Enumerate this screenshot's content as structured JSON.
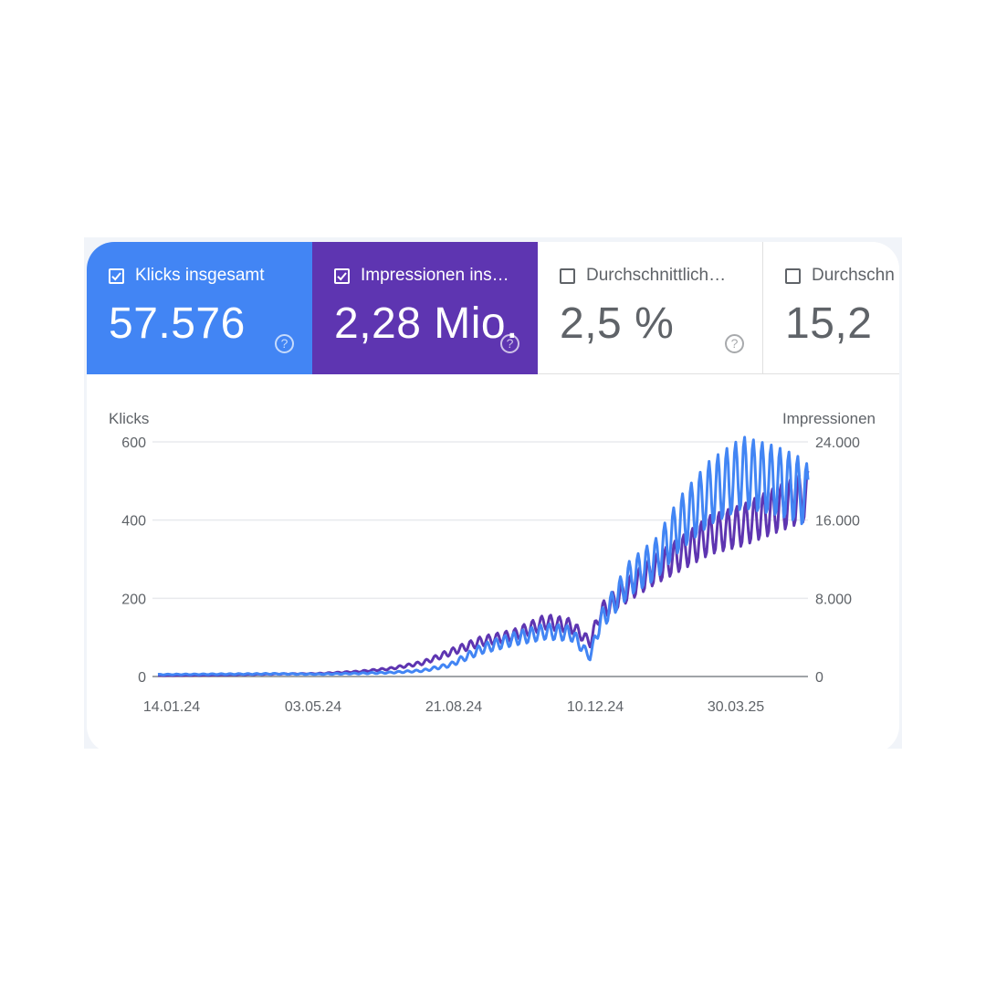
{
  "tiles": [
    {
      "label": "Klicks insgesamt",
      "value": "57.576",
      "checked": true,
      "color": "#4285f4"
    },
    {
      "label": "Impressionen ins…",
      "value": "2,28 Mio.",
      "checked": true,
      "color": "#5e35b1"
    },
    {
      "label": "Durchschnittlich…",
      "value": "2,5 %",
      "checked": false
    },
    {
      "label": "Durchschn",
      "value": "15,2",
      "checked": false
    }
  ],
  "icons": {
    "checkbox": "checkbox-icon",
    "help": "help-icon"
  },
  "help_glyph": "?",
  "chart_data": {
    "type": "line",
    "left_axis_title": "Klicks",
    "right_axis_title": "Impressionen",
    "left_ticks": [
      "0",
      "200",
      "400",
      "600"
    ],
    "right_ticks": [
      "0",
      "8.000",
      "16.000",
      "24.000"
    ],
    "x_ticks": [
      "14.01.24",
      "03.05.24",
      "21.08.24",
      "10.12.24",
      "30.03.25"
    ],
    "x_range": [
      "2024-01-14",
      "2025-06-10"
    ],
    "left_range": [
      0,
      600
    ],
    "right_range": [
      0,
      24000
    ],
    "grid": true,
    "series": [
      {
        "name": "Impressionen",
        "axis": "right",
        "color": "#5e35b1",
        "points": [
          [
            "2024-01-14",
            100
          ],
          [
            "2024-03-01",
            150
          ],
          [
            "2024-04-15",
            250
          ],
          [
            "2024-05-20",
            300
          ],
          [
            "2024-06-20",
            500
          ],
          [
            "2024-07-15",
            800
          ],
          [
            "2024-08-10",
            1400
          ],
          [
            "2024-09-01",
            2500
          ],
          [
            "2024-09-25",
            3600
          ],
          [
            "2024-10-20",
            4200
          ],
          [
            "2024-11-15",
            5600
          ],
          [
            "2024-12-05",
            5200
          ],
          [
            "2024-12-20",
            3500
          ],
          [
            "2024-12-28",
            6500
          ],
          [
            "2025-01-20",
            9000
          ],
          [
            "2025-02-10",
            11000
          ],
          [
            "2025-03-01",
            12500
          ],
          [
            "2025-03-25",
            14500
          ],
          [
            "2025-04-20",
            15500
          ],
          [
            "2025-05-15",
            17000
          ],
          [
            "2025-06-01",
            18000
          ],
          [
            "2025-06-10",
            18500
          ]
        ]
      },
      {
        "name": "Klicks",
        "axis": "left",
        "color": "#4285f4",
        "points": [
          [
            "2024-01-14",
            5
          ],
          [
            "2024-03-01",
            6
          ],
          [
            "2024-04-15",
            7
          ],
          [
            "2024-05-20",
            6
          ],
          [
            "2024-06-20",
            8
          ],
          [
            "2024-07-15",
            10
          ],
          [
            "2024-08-10",
            15
          ],
          [
            "2024-09-01",
            30
          ],
          [
            "2024-09-25",
            70
          ],
          [
            "2024-10-20",
            95
          ],
          [
            "2024-11-15",
            115
          ],
          [
            "2024-12-05",
            110
          ],
          [
            "2024-12-20",
            50
          ],
          [
            "2024-12-28",
            140
          ],
          [
            "2025-01-20",
            250
          ],
          [
            "2025-02-10",
            300
          ],
          [
            "2025-03-01",
            390
          ],
          [
            "2025-03-25",
            470
          ],
          [
            "2025-04-20",
            520
          ],
          [
            "2025-05-15",
            500
          ],
          [
            "2025-06-01",
            480
          ],
          [
            "2025-06-10",
            460
          ]
        ]
      }
    ]
  }
}
